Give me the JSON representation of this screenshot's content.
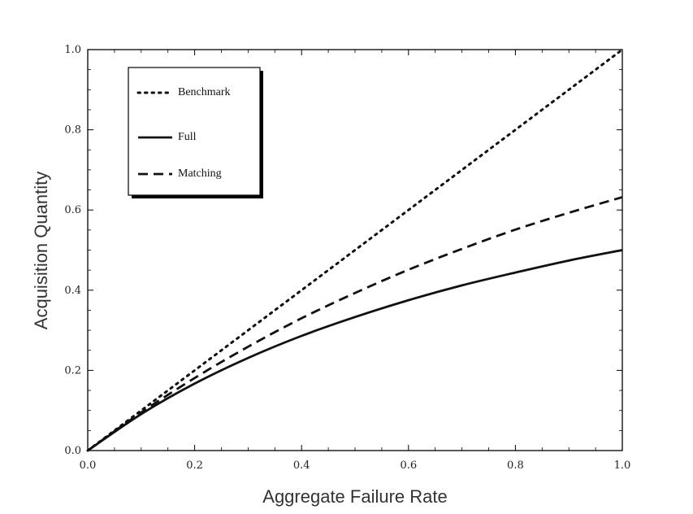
{
  "chart_data": {
    "type": "line",
    "title": "",
    "xlabel": "Aggregate Failure Rate",
    "ylabel": "Acquisition  Quantity",
    "xlim": [
      0.0,
      1.0
    ],
    "ylim": [
      0.0,
      1.0
    ],
    "x_ticks": [
      "0.0",
      "0.2",
      "0.4",
      "0.6",
      "0.8",
      "1.0"
    ],
    "y_ticks": [
      "0.0",
      "0.2",
      "0.4",
      "0.6",
      "0.8",
      "1.0"
    ],
    "grid": false,
    "legend_position": "top-left",
    "series": [
      {
        "name": "Benchmark",
        "style": "dotted",
        "x": [
          0.0,
          0.1,
          0.2,
          0.3,
          0.4,
          0.5,
          0.6,
          0.7,
          0.8,
          0.9,
          1.0
        ],
        "y": [
          0.0,
          0.1,
          0.2,
          0.3,
          0.4,
          0.5,
          0.6,
          0.7,
          0.8,
          0.9,
          1.0
        ]
      },
      {
        "name": "Full",
        "style": "solid",
        "x": [
          0.0,
          0.1,
          0.2,
          0.3,
          0.4,
          0.5,
          0.6,
          0.7,
          0.8,
          0.9,
          1.0
        ],
        "y": [
          0.0,
          0.091,
          0.167,
          0.231,
          0.286,
          0.333,
          0.375,
          0.412,
          0.444,
          0.474,
          0.5
        ]
      },
      {
        "name": "Matching",
        "style": "dashed",
        "x": [
          0.0,
          0.1,
          0.2,
          0.3,
          0.4,
          0.5,
          0.6,
          0.7,
          0.8,
          0.9,
          1.0
        ],
        "y": [
          0.0,
          0.095,
          0.181,
          0.259,
          0.33,
          0.393,
          0.451,
          0.503,
          0.551,
          0.593,
          0.632
        ]
      }
    ]
  }
}
